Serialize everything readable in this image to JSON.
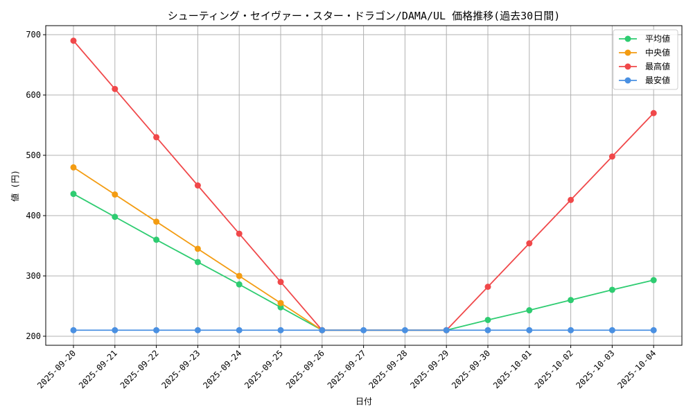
{
  "chart_data": {
    "type": "line",
    "title": "シューティング・セイヴァー・スター・ドラゴン/DAMA/UL 価格推移(過去30日間)",
    "xlabel": "日付",
    "ylabel": "値 (円)",
    "ylim": [
      185,
      715
    ],
    "yticks": [
      200,
      300,
      400,
      500,
      600,
      700
    ],
    "grid": true,
    "legend_position": "top-right",
    "categories": [
      "2025-09-20",
      "2025-09-21",
      "2025-09-22",
      "2025-09-23",
      "2025-09-24",
      "2025-09-25",
      "2025-09-26",
      "2025-09-27",
      "2025-09-28",
      "2025-09-29",
      "2025-09-30",
      "2025-10-01",
      "2025-10-02",
      "2025-10-03",
      "2025-10-04"
    ],
    "series": [
      {
        "name": "平均値",
        "color": "#2ecc71",
        "values": [
          436,
          398,
          360,
          323,
          286,
          248,
          210,
          null,
          null,
          210,
          227,
          243,
          260,
          277,
          293
        ]
      },
      {
        "name": "中央値",
        "color": "#f39c12",
        "values": [
          480,
          435,
          390,
          345,
          300,
          255,
          210,
          null,
          null,
          210,
          null,
          null,
          null,
          null,
          null
        ]
      },
      {
        "name": "最高値",
        "color": "#f0484a",
        "values": [
          690,
          610,
          530,
          450,
          370,
          290,
          210,
          null,
          null,
          210,
          282,
          354,
          426,
          498,
          570
        ]
      },
      {
        "name": "最安値",
        "color": "#4a90e2",
        "values": [
          210,
          210,
          210,
          210,
          210,
          210,
          210,
          210,
          210,
          210,
          210,
          210,
          210,
          210,
          210
        ]
      }
    ]
  }
}
